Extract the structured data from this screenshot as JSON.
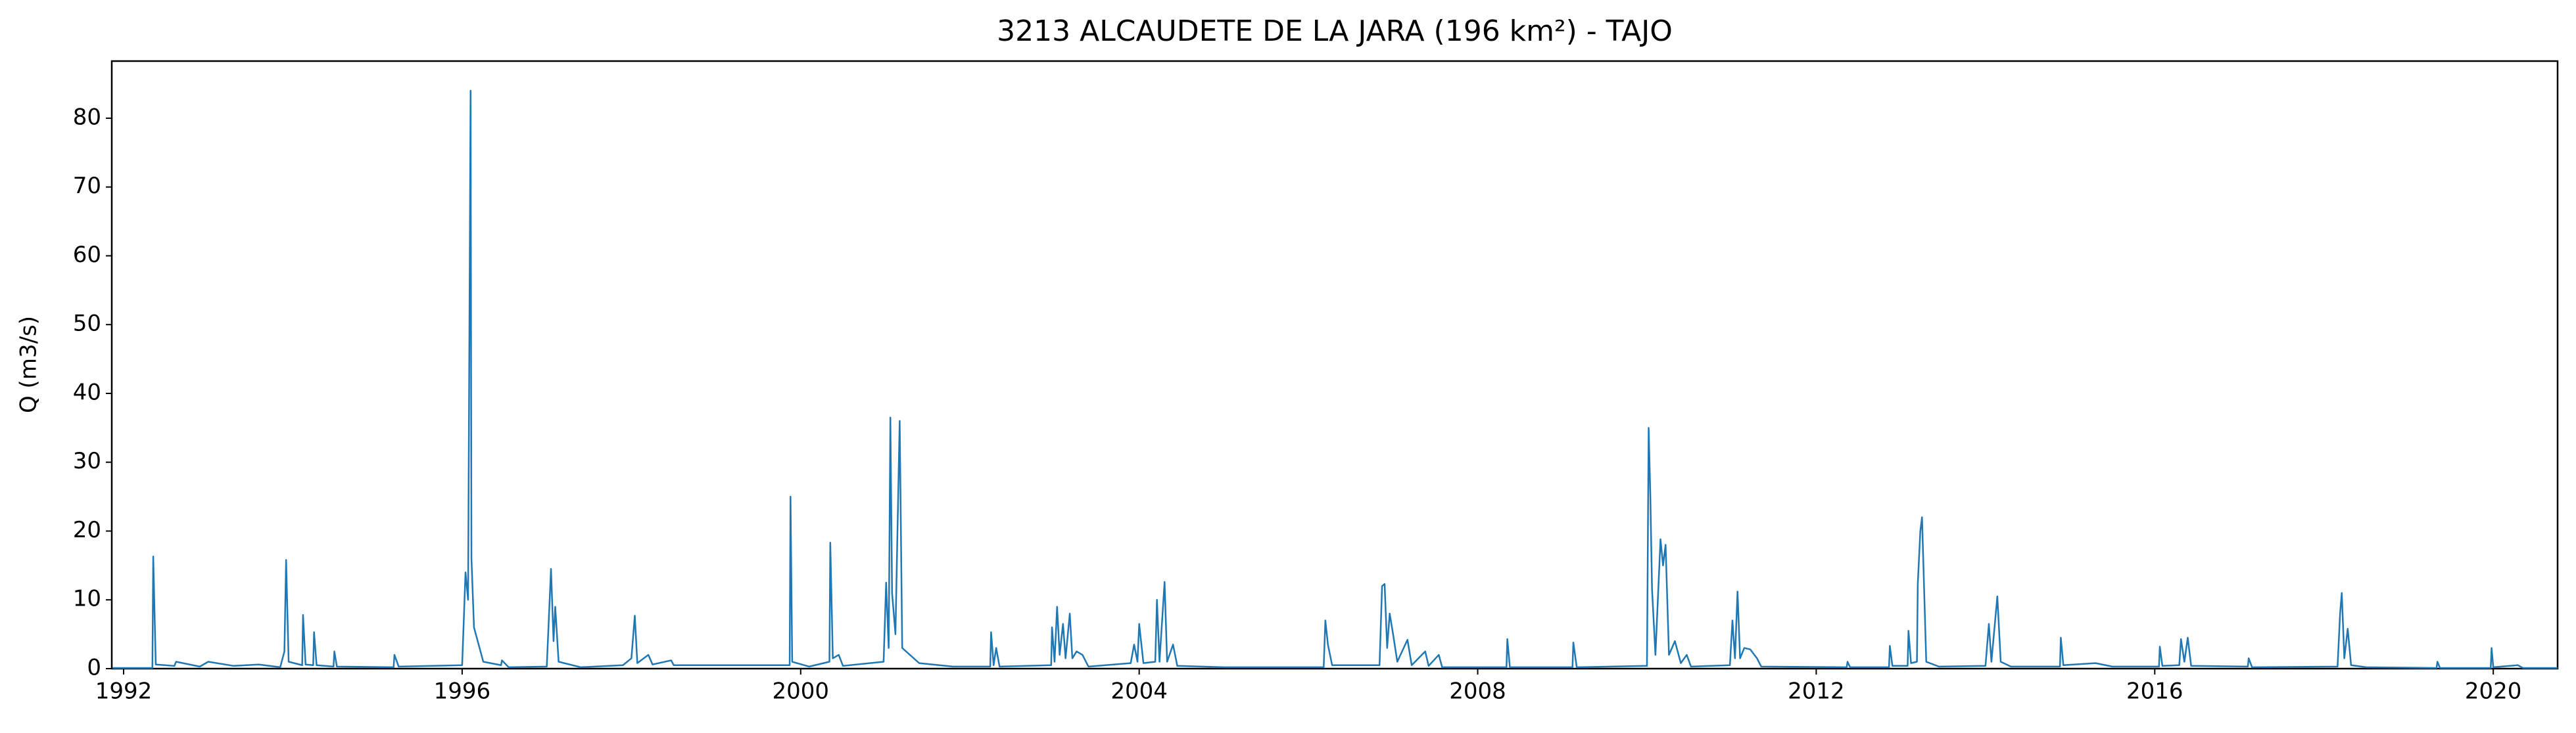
{
  "chart_data": {
    "type": "line",
    "title": "3213 ALCAUDETE DE LA JARA (196 km²) - TAJO",
    "ylabel": "Q (m3/s)",
    "xlim": [
      1991.86,
      2020.76
    ],
    "ylim": [
      0,
      88.3
    ],
    "xticks": [
      1992,
      1996,
      2000,
      2004,
      2008,
      2012,
      2016,
      2020
    ],
    "yticks": [
      0,
      10,
      20,
      30,
      40,
      50,
      60,
      70,
      80
    ],
    "grid": false,
    "series": [
      {
        "name": "Q",
        "color": "#1f77b4",
        "x": [
          1991.87,
          1992.34,
          1992.35,
          1992.38,
          1992.6,
          1992.62,
          1992.9,
          1993.0,
          1993.3,
          1993.6,
          1993.85,
          1993.9,
          1993.92,
          1993.95,
          1994.11,
          1994.12,
          1994.15,
          1994.24,
          1994.25,
          1994.28,
          1994.48,
          1994.49,
          1994.52,
          1995.19,
          1995.2,
          1995.25,
          1996.0,
          1996.04,
          1996.07,
          1996.1,
          1996.11,
          1996.14,
          1996.25,
          1996.46,
          1996.47,
          1996.55,
          1997.0,
          1997.05,
          1997.08,
          1997.1,
          1997.14,
          1997.4,
          1997.9,
          1998.0,
          1998.04,
          1998.07,
          1998.2,
          1998.25,
          1998.47,
          1998.5,
          1999.87,
          1999.88,
          1999.9,
          2000.1,
          2000.34,
          2000.35,
          2000.38,
          2000.45,
          2000.5,
          2000.98,
          2001.01,
          2001.04,
          2001.06,
          2001.08,
          2001.12,
          2001.14,
          2001.17,
          2001.2,
          2001.4,
          2001.8,
          2002.24,
          2002.25,
          2002.28,
          2002.31,
          2002.35,
          2002.96,
          2002.97,
          2003.0,
          2003.03,
          2003.06,
          2003.1,
          2003.13,
          2003.18,
          2003.21,
          2003.26,
          2003.33,
          2003.4,
          2003.9,
          2003.94,
          2003.98,
          2004.0,
          2004.05,
          2004.19,
          2004.21,
          2004.24,
          2004.3,
          2004.33,
          2004.4,
          2004.45,
          2005.0,
          2006.18,
          2006.2,
          2006.23,
          2006.28,
          2006.84,
          2006.87,
          2006.9,
          2006.93,
          2006.96,
          2007.0,
          2007.05,
          2007.17,
          2007.22,
          2007.38,
          2007.42,
          2007.54,
          2007.58,
          2008.34,
          2008.35,
          2008.38,
          2009.12,
          2009.13,
          2009.17,
          2010.0,
          2010.02,
          2010.04,
          2010.06,
          2010.1,
          2010.16,
          2010.19,
          2010.22,
          2010.26,
          2010.33,
          2010.4,
          2010.47,
          2010.52,
          2010.98,
          2011.01,
          2011.04,
          2011.07,
          2011.1,
          2011.15,
          2011.22,
          2011.3,
          2011.35,
          2012.36,
          2012.37,
          2012.4,
          2012.86,
          2012.87,
          2012.9,
          2013.08,
          2013.09,
          2013.12,
          2013.19,
          2013.2,
          2013.23,
          2013.25,
          2013.3,
          2013.45,
          2014.0,
          2014.04,
          2014.07,
          2014.14,
          2014.18,
          2014.3,
          2014.88,
          2014.89,
          2014.92,
          2015.3,
          2015.5,
          2016.05,
          2016.06,
          2016.09,
          2016.29,
          2016.31,
          2016.35,
          2016.39,
          2016.43,
          2017.1,
          2017.11,
          2017.15,
          2018.16,
          2018.19,
          2018.21,
          2018.24,
          2018.28,
          2018.32,
          2018.5,
          2019.33,
          2019.34,
          2019.37,
          2019.97,
          2019.98,
          2020.0,
          2020.29,
          2020.35,
          2020.76
        ],
        "values": [
          0.1,
          0.1,
          16.3,
          0.6,
          0.4,
          1,
          0.3,
          1,
          0.4,
          0.6,
          0.2,
          2.5,
          15.8,
          1,
          0.5,
          7.8,
          0.6,
          0.5,
          5.3,
          0.5,
          0.3,
          2.5,
          0.3,
          0.2,
          2,
          0.3,
          0.5,
          14,
          10,
          84,
          16,
          6,
          1,
          0.5,
          1.2,
          0.2,
          0.3,
          14.5,
          4,
          9,
          1,
          0.2,
          0.5,
          1.5,
          7.7,
          0.8,
          2,
          0.6,
          1.2,
          0.5,
          0.5,
          25,
          1,
          0.3,
          1,
          18.3,
          1.5,
          2,
          0.4,
          1,
          12.5,
          3,
          36.5,
          11,
          5,
          17.5,
          36,
          3,
          0.8,
          0.3,
          0.3,
          5.3,
          0.5,
          3,
          0.3,
          0.5,
          6,
          1,
          9,
          2,
          6.5,
          1.5,
          8,
          1.5,
          2.5,
          2,
          0.3,
          0.8,
          3.5,
          1,
          6.5,
          0.8,
          1,
          10,
          1,
          12.6,
          1,
          3.5,
          0.4,
          0.2,
          0.2,
          7,
          3.5,
          0.5,
          0.5,
          12,
          12.3,
          3,
          8,
          5,
          1,
          4.2,
          0.5,
          2.5,
          0.4,
          2,
          0.2,
          0.2,
          4.3,
          0.2,
          0.2,
          3.8,
          0.2,
          0.4,
          35,
          25,
          11.5,
          2,
          18.8,
          15,
          18,
          2,
          4,
          0.8,
          2,
          0.3,
          0.5,
          7,
          1.5,
          11.2,
          1.5,
          3,
          2.8,
          1.5,
          0.3,
          0.2,
          1,
          0.2,
          0.2,
          3.3,
          0.4,
          0.4,
          5.5,
          0.8,
          1,
          12.3,
          20,
          22,
          1,
          0.3,
          0.4,
          6.5,
          1,
          10.5,
          1,
          0.3,
          0.3,
          4.5,
          0.5,
          0.8,
          0.3,
          0.3,
          3.2,
          0.4,
          0.5,
          4.3,
          1,
          4.5,
          0.4,
          0.3,
          1.5,
          0.2,
          0.3,
          8,
          11,
          1.5,
          5.8,
          0.5,
          0.2,
          0.1,
          1,
          0.1,
          0.1,
          3,
          0.2,
          0.5,
          0.1,
          0.1
        ]
      }
    ]
  }
}
